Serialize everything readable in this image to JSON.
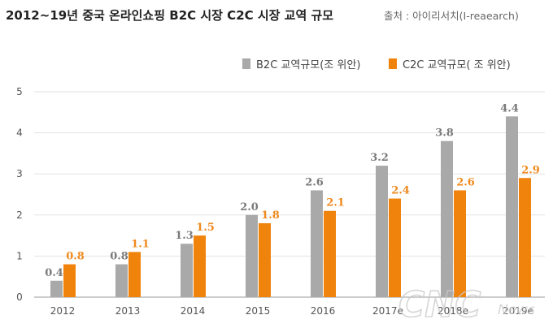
{
  "header": {
    "title": "2012~19년 중국 온라인쇼핑 B2C 시장 C2C 시장 교역 규모",
    "source": "출처 : 아이리서치(I-reaearch)"
  },
  "watermark": {
    "main": "CNC",
    "sub": "News"
  },
  "colors": {
    "b2c": "#a9a9a9",
    "c2c": "#f0830c",
    "b2c_label": "#7a7a7a",
    "c2c_label": "#ef8a1e",
    "axis": "#999999",
    "grid": "#e2e2e2"
  },
  "chart_data": {
    "type": "bar",
    "title": "2012~19년 중국 온라인쇼핑 B2C 시장 C2C 시장 교역 규모",
    "categories": [
      "2012",
      "2013",
      "2014",
      "2015",
      "2016",
      "2017e",
      "2018e",
      "2019e"
    ],
    "series": [
      {
        "name": "B2C 교역규모(조 위안)",
        "values": [
          0.4,
          0.8,
          1.3,
          2.0,
          2.6,
          3.2,
          3.8,
          4.4
        ],
        "labels": [
          "0.4",
          "0.8",
          "1.3",
          "2.0",
          "2.6",
          "3.2",
          "3.8",
          "4.4"
        ]
      },
      {
        "name": "C2C 교역규모( 조 위안)",
        "values": [
          0.8,
          1.1,
          1.5,
          1.8,
          2.1,
          2.4,
          2.6,
          2.9
        ],
        "labels": [
          "0.8",
          "1.1",
          "1.5",
          "1.8",
          "2.1",
          "2.4",
          "2.6",
          "2.9"
        ]
      }
    ],
    "yticks": [
      "0",
      "1",
      "2",
      "3",
      "4",
      "5"
    ],
    "ylim": [
      0,
      5
    ],
    "xlabel": "",
    "ylabel": "",
    "legend": "top-right",
    "grid": true
  }
}
